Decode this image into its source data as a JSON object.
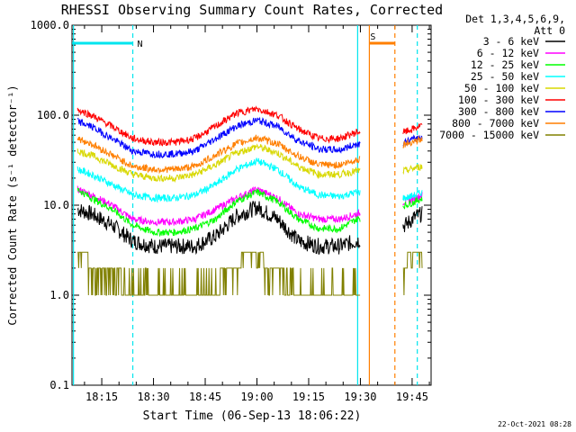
{
  "chart_data": {
    "type": "line",
    "title": "RHESSI Observing Summary Count Rates, Corrected",
    "xlabel": "Start Time (06-Sep-13 18:06:22)",
    "ylabel": "Corrected Count Rate (s⁻¹ detector⁻¹)",
    "y_scale": "log",
    "ylim": [
      0.1,
      1000
    ],
    "y_tick_labels": [
      "0.1",
      "1.0",
      "10.0",
      "100.0",
      "1000.0"
    ],
    "x_tick_labels": [
      "18:15",
      "18:30",
      "18:45",
      "19:00",
      "19:15",
      "19:30",
      "19:45"
    ],
    "x_tick_minutes": [
      15,
      30,
      45,
      60,
      75,
      90,
      105
    ],
    "xlim_minutes": [
      6.37,
      110.5
    ],
    "legend_header": [
      "Det 1,3,4,5,6,9,",
      "Att 0"
    ],
    "legend_position": "right",
    "timestamp": "22-Oct-2021 08:28",
    "annotations": [
      {
        "label": "N",
        "type": "night",
        "start_minute": 6.4,
        "end_minute": 24.0,
        "color": "#00e5ee"
      },
      {
        "label": "S",
        "type": "saa",
        "start_minute": 92.6,
        "end_minute": 100.0,
        "color": "#ff7f00"
      }
    ],
    "vertical_lines": [
      {
        "minute": 6.8,
        "style": "solid",
        "color": "#00e5ee"
      },
      {
        "minute": 24.0,
        "style": "dashed",
        "color": "#00e5ee"
      },
      {
        "minute": 89.2,
        "style": "solid",
        "color": "#00e5ee"
      },
      {
        "minute": 92.6,
        "style": "solid",
        "color": "#ff7f00"
      },
      {
        "minute": 100.0,
        "style": "dashed",
        "color": "#ff7f00"
      },
      {
        "minute": 106.5,
        "style": "dashed",
        "color": "#00e5ee"
      }
    ],
    "data_gap_minutes": [
      [
        90.0,
        102.3
      ]
    ],
    "time_minutes": [
      8,
      12,
      18,
      24,
      30,
      36,
      42,
      48,
      54,
      60,
      66,
      72,
      78,
      84,
      89,
      103,
      106,
      108
    ],
    "series": [
      {
        "name": "3 - 6 keV",
        "color": "#000000",
        "values": [
          9,
          8,
          6,
          4,
          3.5,
          3.5,
          3.5,
          4.5,
          7.5,
          9.5,
          7,
          4,
          3.5,
          3.5,
          4,
          6,
          7.5,
          8
        ]
      },
      {
        "name": "6 - 12 keV",
        "color": "#ff00ff",
        "values": [
          15,
          13,
          10,
          7,
          6.5,
          6.5,
          7,
          9,
          12,
          15,
          12,
          8,
          7,
          7,
          8,
          11,
          12,
          13
        ]
      },
      {
        "name": "12 - 25 keV",
        "color": "#00ff00",
        "values": [
          15,
          12,
          9,
          6,
          5,
          5,
          5.5,
          7,
          11,
          14,
          11,
          7,
          5.5,
          5.5,
          7,
          10,
          11,
          12
        ]
      },
      {
        "name": "25 - 50 keV",
        "color": "#00ffff",
        "values": [
          25,
          22,
          17,
          13,
          12,
          12,
          13,
          17,
          25,
          31,
          25,
          16,
          13,
          12.5,
          14,
          12,
          13,
          14
        ]
      },
      {
        "name": "50 - 100 keV",
        "color": "#d8d800",
        "values": [
          40,
          36,
          28,
          22,
          20,
          20,
          22,
          28,
          38,
          45,
          38,
          27,
          22,
          22,
          24,
          24,
          26,
          27
        ]
      },
      {
        "name": "100 - 300 keV",
        "color": "#ff0000",
        "values": [
          115,
          100,
          75,
          55,
          50,
          50,
          55,
          75,
          105,
          118,
          100,
          70,
          55,
          55,
          65,
          65,
          72,
          78
        ]
      },
      {
        "name": "300 - 800 keV",
        "color": "#0000ff",
        "values": [
          85,
          75,
          55,
          40,
          37,
          37,
          40,
          55,
          75,
          88,
          75,
          52,
          42,
          41,
          48,
          50,
          55,
          58
        ]
      },
      {
        "name": "800 - 7000 keV",
        "color": "#ff7f00",
        "values": [
          55,
          48,
          36,
          27,
          25,
          25,
          27,
          36,
          48,
          56,
          48,
          35,
          28,
          28,
          32,
          48,
          52,
          54
        ]
      },
      {
        "name": "7000 - 15000 keV",
        "color": "#808000",
        "values": [
          3,
          2.5,
          2,
          1.4,
          1,
          1,
          1,
          1.5,
          2.5,
          3,
          2,
          1.2,
          1,
          1,
          1.5,
          2.5,
          3,
          3
        ]
      }
    ]
  }
}
